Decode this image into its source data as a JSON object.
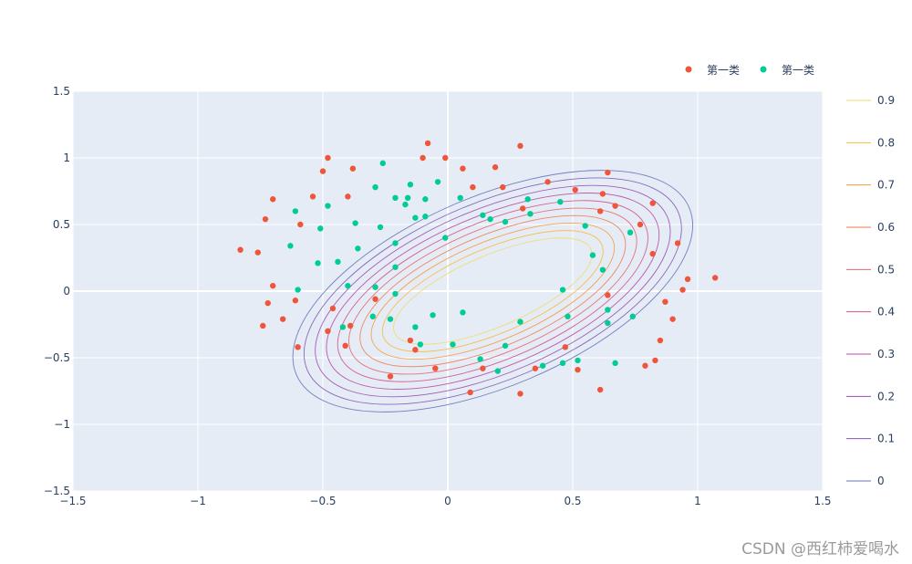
{
  "watermark": "CSDN @西红柿爱喝水",
  "chart_data": {
    "type": "scatter",
    "title": "",
    "xlabel": "",
    "ylabel": "",
    "xlim": [
      -1.5,
      1.5
    ],
    "ylim": [
      -1.5,
      1.5
    ],
    "x_ticks": [
      -1.5,
      -1,
      -0.5,
      0,
      0.5,
      1,
      1.5
    ],
    "y_ticks": [
      -1.5,
      -1,
      -0.5,
      0,
      0.5,
      1,
      1.5
    ],
    "x_tick_labels": [
      "−1.5",
      "−1",
      "−0.5",
      "0",
      "0.5",
      "1",
      "1.5"
    ],
    "y_tick_labels": [
      "−1.5",
      "−1",
      "−0.5",
      "0",
      "0.5",
      "1",
      "1.5"
    ],
    "grid": true,
    "background": "#e5ecf6",
    "legend_position": "top-right",
    "series": [
      {
        "name": "第一类",
        "color": "#ef553b",
        "points": [
          [
            -0.83,
            0.31
          ],
          [
            -0.76,
            0.29
          ],
          [
            -0.73,
            0.54
          ],
          [
            -0.7,
            0.69
          ],
          [
            -0.7,
            0.04
          ],
          [
            -0.72,
            -0.09
          ],
          [
            -0.74,
            -0.26
          ],
          [
            -0.66,
            -0.21
          ],
          [
            -0.61,
            -0.07
          ],
          [
            -0.59,
            0.5
          ],
          [
            -0.6,
            -0.42
          ],
          [
            -0.54,
            0.71
          ],
          [
            -0.5,
            0.9
          ],
          [
            -0.48,
            1.0
          ],
          [
            -0.48,
            -0.3
          ],
          [
            -0.46,
            -0.13
          ],
          [
            -0.38,
            0.92
          ],
          [
            -0.4,
            0.71
          ],
          [
            -0.41,
            -0.41
          ],
          [
            -0.39,
            -0.26
          ],
          [
            -0.29,
            -0.06
          ],
          [
            -0.23,
            -0.64
          ],
          [
            -0.15,
            -0.37
          ],
          [
            -0.13,
            -0.44
          ],
          [
            -0.1,
            1.0
          ],
          [
            -0.08,
            1.11
          ],
          [
            -0.05,
            -0.58
          ],
          [
            -0.01,
            1.0
          ],
          [
            0.06,
            0.92
          ],
          [
            0.09,
            -0.76
          ],
          [
            0.1,
            0.78
          ],
          [
            0.14,
            -0.58
          ],
          [
            0.19,
            0.93
          ],
          [
            0.22,
            0.78
          ],
          [
            0.29,
            1.09
          ],
          [
            0.3,
            0.62
          ],
          [
            0.29,
            -0.77
          ],
          [
            0.35,
            -0.58
          ],
          [
            0.4,
            0.82
          ],
          [
            0.47,
            -0.42
          ],
          [
            0.51,
            0.76
          ],
          [
            0.52,
            -0.59
          ],
          [
            0.61,
            -0.74
          ],
          [
            0.61,
            0.6
          ],
          [
            0.62,
            0.73
          ],
          [
            0.64,
            0.89
          ],
          [
            0.64,
            -0.03
          ],
          [
            0.67,
            0.64
          ],
          [
            0.77,
            0.5
          ],
          [
            0.79,
            -0.56
          ],
          [
            0.82,
            0.66
          ],
          [
            0.82,
            0.28
          ],
          [
            0.83,
            -0.52
          ],
          [
            0.85,
            -0.37
          ],
          [
            0.87,
            -0.08
          ],
          [
            0.9,
            -0.21
          ],
          [
            0.92,
            0.36
          ],
          [
            0.94,
            0.01
          ],
          [
            0.96,
            0.09
          ],
          [
            1.07,
            0.1
          ]
        ]
      },
      {
        "name": "第一类",
        "color": "#00cc96",
        "points": [
          [
            -0.63,
            0.34
          ],
          [
            -0.61,
            0.6
          ],
          [
            -0.6,
            0.01
          ],
          [
            -0.52,
            0.21
          ],
          [
            -0.51,
            0.47
          ],
          [
            -0.48,
            0.64
          ],
          [
            -0.44,
            0.22
          ],
          [
            -0.42,
            -0.27
          ],
          [
            -0.4,
            0.04
          ],
          [
            -0.37,
            0.51
          ],
          [
            -0.36,
            0.32
          ],
          [
            -0.3,
            -0.19
          ],
          [
            -0.29,
            0.78
          ],
          [
            -0.29,
            0.03
          ],
          [
            -0.27,
            0.48
          ],
          [
            -0.26,
            0.96
          ],
          [
            -0.23,
            -0.21
          ],
          [
            -0.21,
            0.7
          ],
          [
            -0.21,
            0.18
          ],
          [
            -0.21,
            0.36
          ],
          [
            -0.21,
            -0.02
          ],
          [
            -0.17,
            0.65
          ],
          [
            -0.16,
            0.7
          ],
          [
            -0.15,
            0.8
          ],
          [
            -0.13,
            0.55
          ],
          [
            -0.13,
            -0.27
          ],
          [
            -0.11,
            -0.4
          ],
          [
            -0.09,
            0.69
          ],
          [
            -0.09,
            0.56
          ],
          [
            -0.06,
            -0.18
          ],
          [
            -0.04,
            0.82
          ],
          [
            -0.01,
            0.4
          ],
          [
            0.02,
            -0.4
          ],
          [
            0.05,
            0.7
          ],
          [
            0.06,
            -0.16
          ],
          [
            0.13,
            -0.51
          ],
          [
            0.14,
            0.57
          ],
          [
            0.17,
            0.54
          ],
          [
            0.2,
            -0.6
          ],
          [
            0.23,
            0.52
          ],
          [
            0.23,
            -0.41
          ],
          [
            0.29,
            -0.23
          ],
          [
            0.32,
            0.69
          ],
          [
            0.33,
            0.58
          ],
          [
            0.38,
            -0.56
          ],
          [
            0.45,
            0.67
          ],
          [
            0.46,
            0.01
          ],
          [
            0.46,
            -0.54
          ],
          [
            0.48,
            -0.19
          ],
          [
            0.52,
            -0.52
          ],
          [
            0.55,
            0.49
          ],
          [
            0.58,
            0.27
          ],
          [
            0.62,
            0.16
          ],
          [
            0.64,
            -0.14
          ],
          [
            0.64,
            -0.24
          ],
          [
            0.67,
            -0.54
          ],
          [
            0.73,
            0.44
          ],
          [
            0.74,
            -0.19
          ]
        ]
      }
    ],
    "contours": {
      "levels": [
        0,
        0.1,
        0.2,
        0.3,
        0.4,
        0.5,
        0.6,
        0.7,
        0.8,
        0.9
      ],
      "level_labels": [
        "0",
        "0.1",
        "0.2",
        "0.3",
        "0.4",
        "0.5",
        "0.6",
        "0.7",
        "0.8",
        "0.9"
      ],
      "colors": [
        "#6772b8",
        "#7f59b7",
        "#9c4cb4",
        "#b748a6",
        "#d2518e",
        "#e3656f",
        "#ee7d52",
        "#f59b3f",
        "#f7bb3a",
        "#ecdd6a"
      ],
      "center": [
        0.18,
        0.0
      ],
      "rotation_deg": 23
    }
  }
}
